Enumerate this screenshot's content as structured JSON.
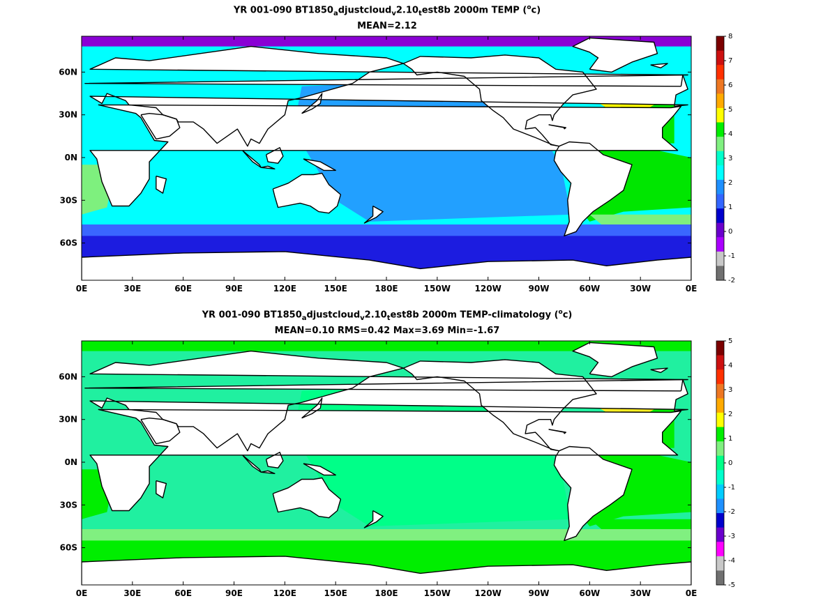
{
  "panels": [
    {
      "title": {
        "pre": "YR 001-090 BT1850",
        "sub1": "a",
        "mid1": "djustcloud",
        "sub2": "v",
        "mid2": "2.10",
        "sub3": "t",
        "mid3": "est8b 2000m TEMP (",
        "sup": "o",
        "post": "c)"
      },
      "stats": "MEAN=2.12",
      "colorbar_ticks": [
        "8",
        "7",
        "6",
        "5",
        "4",
        "3",
        "2",
        "1",
        "0",
        "-1",
        "-2"
      ],
      "colorbar_colors": [
        "#7b0000",
        "#cc1010",
        "#ff3000",
        "#ee7722",
        "#ffaa00",
        "#ffff00",
        "#00ee00",
        "#80f080",
        "#00ffcc",
        "#00ffff",
        "#1e90ff",
        "#3366ff",
        "#0000cc",
        "#6a00cc",
        "#aa00ff",
        "#c8c8c8",
        "#707070"
      ],
      "colors": {
        "polar": "#8a00d4",
        "southern": "#1c1ce0",
        "southern2": "#3a66ff",
        "pacific": "#22a0ff",
        "indian": "#00ffff",
        "atl_s": "#7ef07e",
        "atl_mid": "#00e600",
        "north_atl": "#ffff00",
        "land": "#ffffff"
      }
    },
    {
      "title": {
        "pre": "YR 001-090 BT1850",
        "sub1": "a",
        "mid1": "djustcloud",
        "sub2": "v",
        "mid2": "2.10",
        "sub3": "t",
        "mid3": "est8b 2000m TEMP-climatology (",
        "sup": "o",
        "post": "c)"
      },
      "stats": "MEAN=0.10   RMS=0.42   Max=3.69   Min=-1.67",
      "colorbar_ticks": [
        "5",
        "4",
        "3",
        "2",
        "1",
        "0",
        "-1",
        "-2",
        "-3",
        "-4",
        "-5"
      ],
      "colorbar_colors": [
        "#7b0000",
        "#cc1010",
        "#ff3000",
        "#ee7722",
        "#ffaa00",
        "#ffff00",
        "#00ee00",
        "#80f080",
        "#00ff88",
        "#00ffcc",
        "#00ccff",
        "#1e90ff",
        "#0000cc",
        "#6a00cc",
        "#ff00ff",
        "#c8c8c8",
        "#707070"
      ],
      "colors": {
        "polar": "#00ee00",
        "southern": "#00ee00",
        "southern2": "#80f080",
        "pacific": "#00ff88",
        "indian": "#20f0a0",
        "atl_s": "#00ee00",
        "atl_mid": "#00ee00",
        "north_atl": "#ffee22",
        "land": "#ffffff"
      }
    }
  ],
  "axes": {
    "x_ticks": [
      "0E",
      "30E",
      "60E",
      "90E",
      "120E",
      "150E",
      "180E",
      "150W",
      "120W",
      "90W",
      "60W",
      "30W",
      "0E"
    ],
    "y_ticks": [
      "60N",
      "30N",
      "0N",
      "30S",
      "60S"
    ]
  }
}
